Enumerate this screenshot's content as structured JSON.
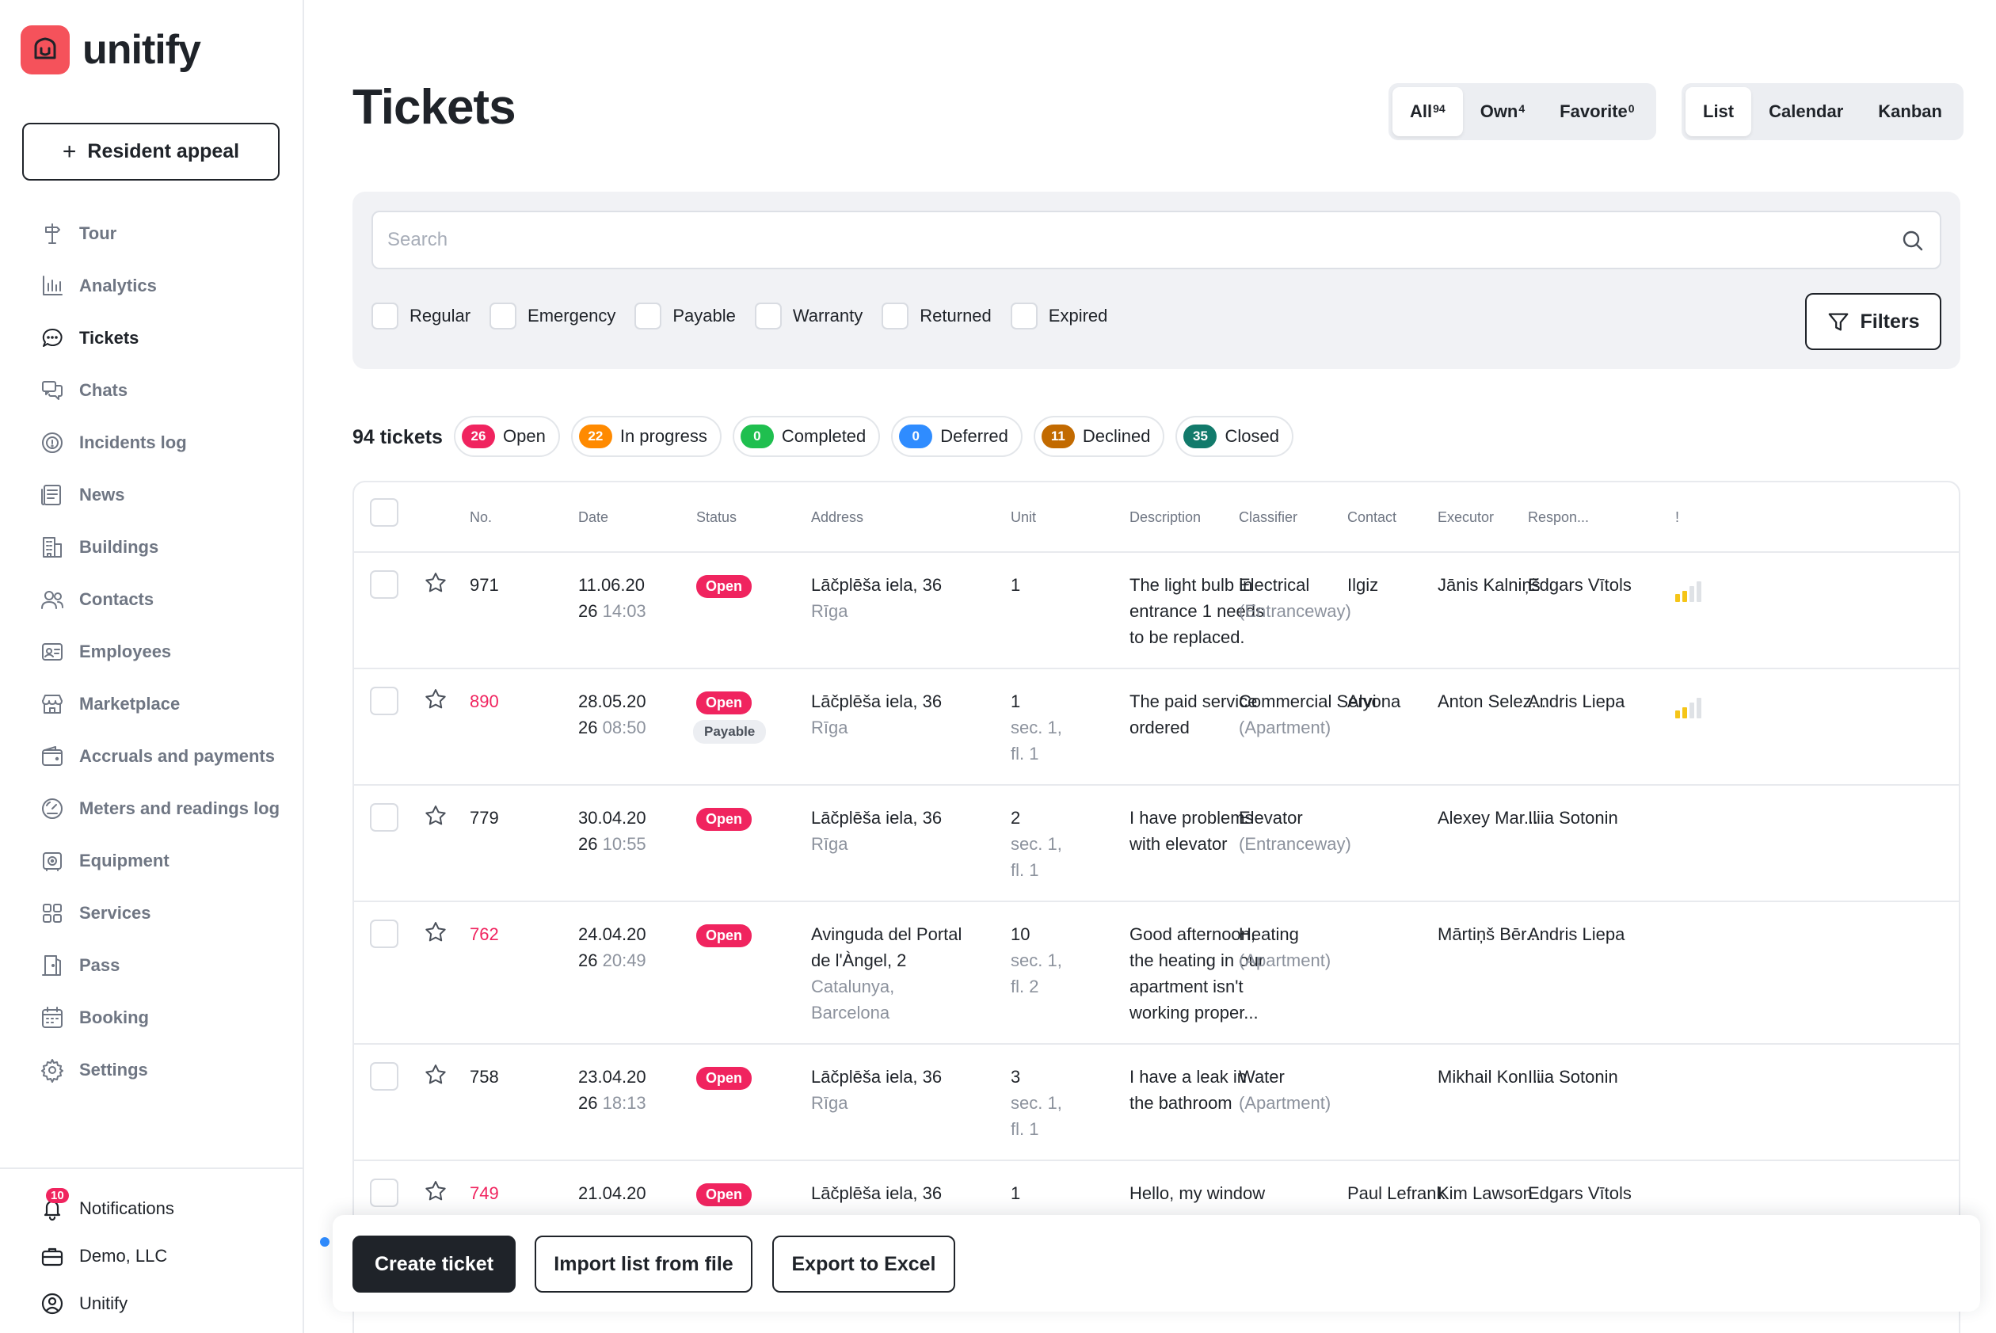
{
  "brand": {
    "name": "unitify"
  },
  "sidebar": {
    "appeal_button": "Resident appeal",
    "items": [
      {
        "label": "Tour",
        "icon": "signpost-icon"
      },
      {
        "label": "Analytics",
        "icon": "bar-chart-icon"
      },
      {
        "label": "Tickets",
        "icon": "chat-bubble-icon",
        "active": true
      },
      {
        "label": "Chats",
        "icon": "chats-icon"
      },
      {
        "label": "Incidents log",
        "icon": "target-icon"
      },
      {
        "label": "News",
        "icon": "newspaper-icon"
      },
      {
        "label": "Buildings",
        "icon": "building-icon"
      },
      {
        "label": "Contacts",
        "icon": "people-icon"
      },
      {
        "label": "Employees",
        "icon": "id-badge-icon"
      },
      {
        "label": "Marketplace",
        "icon": "store-icon"
      },
      {
        "label": "Accruals and payments",
        "icon": "wallet-icon"
      },
      {
        "label": "Meters and readings log",
        "icon": "gauge-icon"
      },
      {
        "label": "Equipment",
        "icon": "equipment-icon"
      },
      {
        "label": "Services",
        "icon": "grid-icon"
      },
      {
        "label": "Pass",
        "icon": "door-icon"
      },
      {
        "label": "Booking",
        "icon": "calendar-icon"
      },
      {
        "label": "Settings",
        "icon": "gear-icon"
      }
    ],
    "bottom": {
      "notifications": "Notifications",
      "notifications_count": "10",
      "company": "Demo, LLC",
      "user": "Unitify"
    }
  },
  "header": {
    "title": "Tickets",
    "scope_tabs": [
      {
        "label": "All",
        "count": "94",
        "active": true
      },
      {
        "label": "Own",
        "count": "4"
      },
      {
        "label": "Favorite",
        "count": "0"
      }
    ],
    "view_tabs": [
      {
        "label": "List",
        "active": true
      },
      {
        "label": "Calendar"
      },
      {
        "label": "Kanban"
      }
    ]
  },
  "filters": {
    "search_placeholder": "Search",
    "checkboxes": [
      "Regular",
      "Emergency",
      "Payable",
      "Warranty",
      "Returned",
      "Expired"
    ],
    "filters_button": "Filters"
  },
  "summary": {
    "total": "94 tickets",
    "statuses": [
      {
        "count": "26",
        "label": "Open",
        "color": "#f0245f"
      },
      {
        "count": "22",
        "label": "In progress",
        "color": "#ff8a00"
      },
      {
        "count": "0",
        "label": "Completed",
        "color": "#1fbf4f"
      },
      {
        "count": "0",
        "label": "Deferred",
        "color": "#2f8cff"
      },
      {
        "count": "11",
        "label": "Declined",
        "color": "#c26a00"
      },
      {
        "count": "35",
        "label": "Closed",
        "color": "#127a6b"
      }
    ]
  },
  "table": {
    "columns": [
      "No.",
      "Date",
      "Status",
      "Address",
      "Unit",
      "Description",
      "Classifier",
      "Contact",
      "Executor",
      "Respon...",
      "!"
    ],
    "rows": [
      {
        "no": "971",
        "no_red": false,
        "date": "11.06.20",
        "date2_a": "26",
        "date2_b": "14:03",
        "status": "Open",
        "payable": "",
        "addr1": "Lāčplēša iela, 36",
        "addr2": "",
        "addr_sub": [
          "Rīga"
        ],
        "unit": "1",
        "unit_sub": [],
        "desc": [
          "The light bulb in",
          "entrance 1 needs",
          "to be replaced."
        ],
        "class1": "Electrical",
        "class2": "(Entranceway)",
        "contact": "Ilgiz",
        "executor": "Jānis Kalniņš",
        "responsible": "Edgars Vītols",
        "priority": 1
      },
      {
        "no": "890",
        "no_red": true,
        "date": "28.05.20",
        "date2_a": "26",
        "date2_b": "08:50",
        "status": "Open",
        "payable": "Payable",
        "addr1": "Lāčplēša iela, 36",
        "addr2": "",
        "addr_sub": [
          "Rīga"
        ],
        "unit": "1",
        "unit_sub": [
          "sec. 1,",
          "fl. 1"
        ],
        "desc": [
          "The paid service",
          "ordered"
        ],
        "class1": "Commercial Servi",
        "class2": "(Apartment)",
        "contact": "Alyona",
        "executor": "Anton Selez...",
        "responsible": "Andris Liepa",
        "priority": 1
      },
      {
        "no": "779",
        "no_red": false,
        "date": "30.04.20",
        "date2_a": "26",
        "date2_b": "10:55",
        "status": "Open",
        "payable": "",
        "addr1": "Lāčplēša iela, 36",
        "addr2": "",
        "addr_sub": [
          "Rīga"
        ],
        "unit": "2",
        "unit_sub": [
          "sec. 1,",
          "fl. 1"
        ],
        "desc": [
          "I have problems",
          "with elevator"
        ],
        "class1": "Elevator",
        "class2": "(Entranceway)",
        "contact": "",
        "executor": "Alexey Mar...",
        "responsible": "Iliia Sotonin",
        "priority": 0
      },
      {
        "no": "762",
        "no_red": true,
        "date": "24.04.20",
        "date2_a": "26",
        "date2_b": "20:49",
        "status": "Open",
        "payable": "",
        "addr1": "Avinguda del Portal",
        "addr2": "de l'Àngel, 2",
        "addr_sub": [
          "Catalunya,",
          "Barcelona"
        ],
        "unit": "10",
        "unit_sub": [
          "sec. 1,",
          "fl. 2"
        ],
        "desc": [
          "Good afternoon,",
          "the heating in our",
          "apartment isn't",
          "working proper..."
        ],
        "class1": "Heating",
        "class2": "(Apartment)",
        "contact": "",
        "executor": "Mārtiņš Bēr...",
        "responsible": "Andris Liepa",
        "priority": 0
      },
      {
        "no": "758",
        "no_red": false,
        "date": "23.04.20",
        "date2_a": "26",
        "date2_b": "18:13",
        "status": "Open",
        "payable": "",
        "addr1": "Lāčplēša iela, 36",
        "addr2": "",
        "addr_sub": [
          "Rīga"
        ],
        "unit": "3",
        "unit_sub": [
          "sec. 1,",
          "fl. 1"
        ],
        "desc": [
          "I have a leak in",
          "the bathroom"
        ],
        "class1": "Water",
        "class2": "(Apartment)",
        "contact": "",
        "executor": "Mikhail Kon...",
        "responsible": "Iliia Sotonin",
        "priority": 0
      },
      {
        "no": "749",
        "no_red": true,
        "date": "21.04.20",
        "date2_a": "",
        "date2_b": "",
        "status": "Open",
        "payable": "",
        "addr1": "Lāčplēša iela, 36",
        "addr2": "",
        "addr_sub": [],
        "unit": "1",
        "unit_sub": [],
        "desc": [
          "Hello, my window"
        ],
        "class1": "",
        "class2": "",
        "contact": "Paul Lefrank",
        "executor": "Kim Lawson",
        "responsible": "Edgars Vītols",
        "priority": 0
      }
    ]
  },
  "actions": {
    "create": "Create ticket",
    "import": "Import list from file",
    "export": "Export to Excel"
  }
}
